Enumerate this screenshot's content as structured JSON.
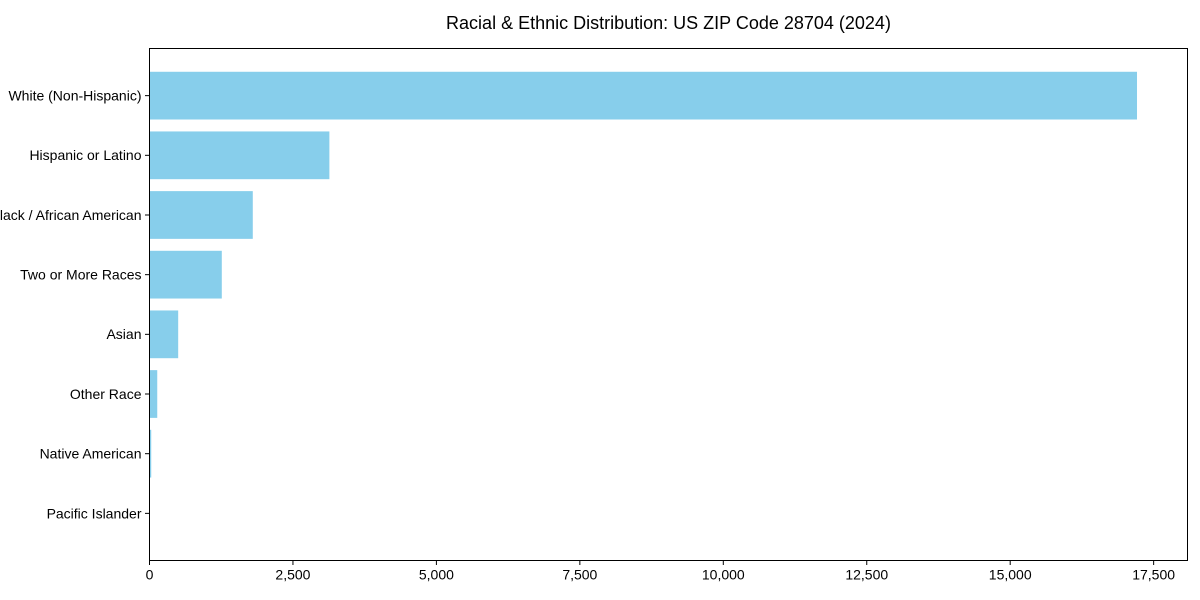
{
  "chart_data": {
    "type": "bar",
    "orientation": "horizontal",
    "title": "Racial & Ethnic Distribution: US ZIP Code 28704 (2024)",
    "xlabel": "",
    "ylabel": "",
    "categories": [
      "White (Non-Hispanic)",
      "Hispanic or Latino",
      "Black / African American",
      "Two or More Races",
      "Asian",
      "Other Race",
      "Native American",
      "Pacific Islander"
    ],
    "values": [
      17210,
      3135,
      1800,
      1260,
      500,
      135,
      30,
      0
    ],
    "xlim": [
      0,
      18090
    ],
    "x_ticks": [
      {
        "value": 0,
        "label": "0"
      },
      {
        "value": 2500,
        "label": "2,500"
      },
      {
        "value": 5000,
        "label": "5,000"
      },
      {
        "value": 7500,
        "label": "7,500"
      },
      {
        "value": 10000,
        "label": "10,000"
      },
      {
        "value": 12500,
        "label": "12,500"
      },
      {
        "value": 15000,
        "label": "15,000"
      },
      {
        "value": 17500,
        "label": "17,500"
      }
    ],
    "bar_color": "#87CEEB",
    "axis_color": "#000000",
    "text_color": "#000000",
    "background_color": "#ffffff",
    "grid": false,
    "legend": false
  }
}
